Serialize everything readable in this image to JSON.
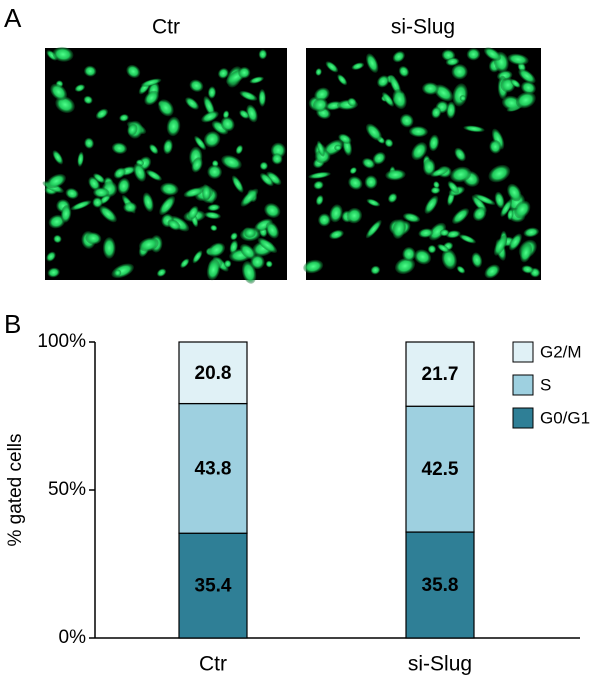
{
  "panels": {
    "a": {
      "label": "A",
      "image_titles": [
        "Ctr",
        "si-Slug"
      ]
    },
    "b": {
      "label": "B"
    }
  },
  "chart_data": {
    "type": "bar",
    "stacked": true,
    "ylabel": "% gated cells",
    "categories": [
      "Ctr",
      "si-Slug"
    ],
    "series": [
      {
        "name": "G0/G1",
        "color": "#2f7f96",
        "values": [
          35.4,
          35.8
        ]
      },
      {
        "name": "S",
        "color": "#9ed0e0",
        "values": [
          43.8,
          42.5
        ]
      },
      {
        "name": "G2/M",
        "color": "#e0f1f6",
        "values": [
          20.8,
          21.7
        ]
      }
    ],
    "ylim": [
      0,
      100
    ],
    "yticks": [
      {
        "value": 0,
        "label": "0%"
      },
      {
        "value": 50,
        "label": "50%"
      },
      {
        "value": 100,
        "label": "100%"
      }
    ],
    "legend": "top-right"
  }
}
